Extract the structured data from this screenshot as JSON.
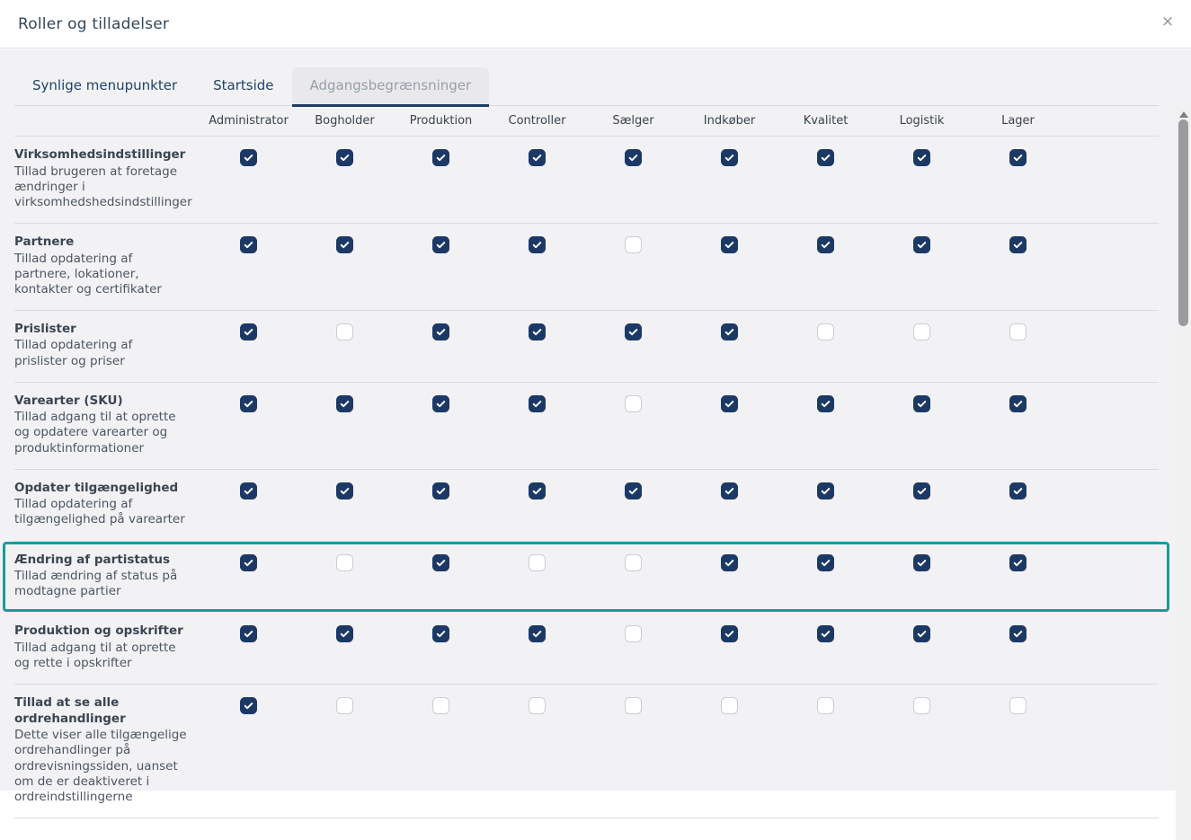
{
  "modal": {
    "title": "Roller og tilladelser",
    "close_label": "×"
  },
  "tabs": [
    {
      "label": "Synlige menupunkter",
      "active": false
    },
    {
      "label": "Startside",
      "active": false
    },
    {
      "label": "Adgangsbegrænsninger",
      "active": true
    }
  ],
  "table": {
    "columns": [
      "Administrator",
      "Bogholder",
      "Produktion",
      "Controller",
      "Sælger",
      "Indkøber",
      "Kvalitet",
      "Logistik",
      "Lager"
    ],
    "rows": [
      {
        "name": "Virksomhedsindstillinger",
        "description": "Tillad brugeren at foretage ændringer i virksomhedshedsindstillinger",
        "checks": [
          true,
          true,
          true,
          true,
          true,
          true,
          true,
          true,
          true
        ],
        "highlighted": false
      },
      {
        "name": "Partnere",
        "description": "Tillad opdatering af partnere, lokationer, kontakter og certifikater",
        "checks": [
          true,
          true,
          true,
          true,
          false,
          true,
          true,
          true,
          true
        ],
        "highlighted": false
      },
      {
        "name": "Prislister",
        "description": "Tillad opdatering af prislister og priser",
        "checks": [
          true,
          false,
          true,
          true,
          true,
          true,
          false,
          false,
          false
        ],
        "highlighted": false
      },
      {
        "name": "Varearter (SKU)",
        "description": "Tillad adgang til at oprette og opdatere varearter og produktinformationer",
        "checks": [
          true,
          true,
          true,
          true,
          false,
          true,
          true,
          true,
          true
        ],
        "highlighted": false
      },
      {
        "name": "Opdater tilgængelighed",
        "description": "Tillad opdatering af tilgængelighed på varearter",
        "checks": [
          true,
          true,
          true,
          true,
          true,
          true,
          true,
          true,
          true
        ],
        "highlighted": false
      },
      {
        "name": "Ændring af partistatus",
        "description": "Tillad ændring af status på modtagne partier",
        "checks": [
          true,
          false,
          true,
          false,
          false,
          true,
          true,
          true,
          true
        ],
        "highlighted": true
      },
      {
        "name": "Produktion og opskrifter",
        "description": "Tillad adgang til at oprette og rette i opskrifter",
        "checks": [
          true,
          true,
          true,
          true,
          false,
          true,
          true,
          true,
          true
        ],
        "highlighted": false
      },
      {
        "name": "Tillad at se alle ordrehandlinger",
        "description": "Dette viser alle tilgængelige ordrehandlinger på ordrevisningssiden, uanset om de er deaktiveret i ordreindstillingerne",
        "checks": [
          true,
          false,
          false,
          false,
          false,
          false,
          false,
          false,
          false
        ],
        "highlighted": false
      }
    ]
  },
  "colors": {
    "checkbox_checked": "#1c3966",
    "tab_underline": "#1e3c64",
    "highlight_border": "#199b9a",
    "body_background": "#f2f2f4"
  }
}
